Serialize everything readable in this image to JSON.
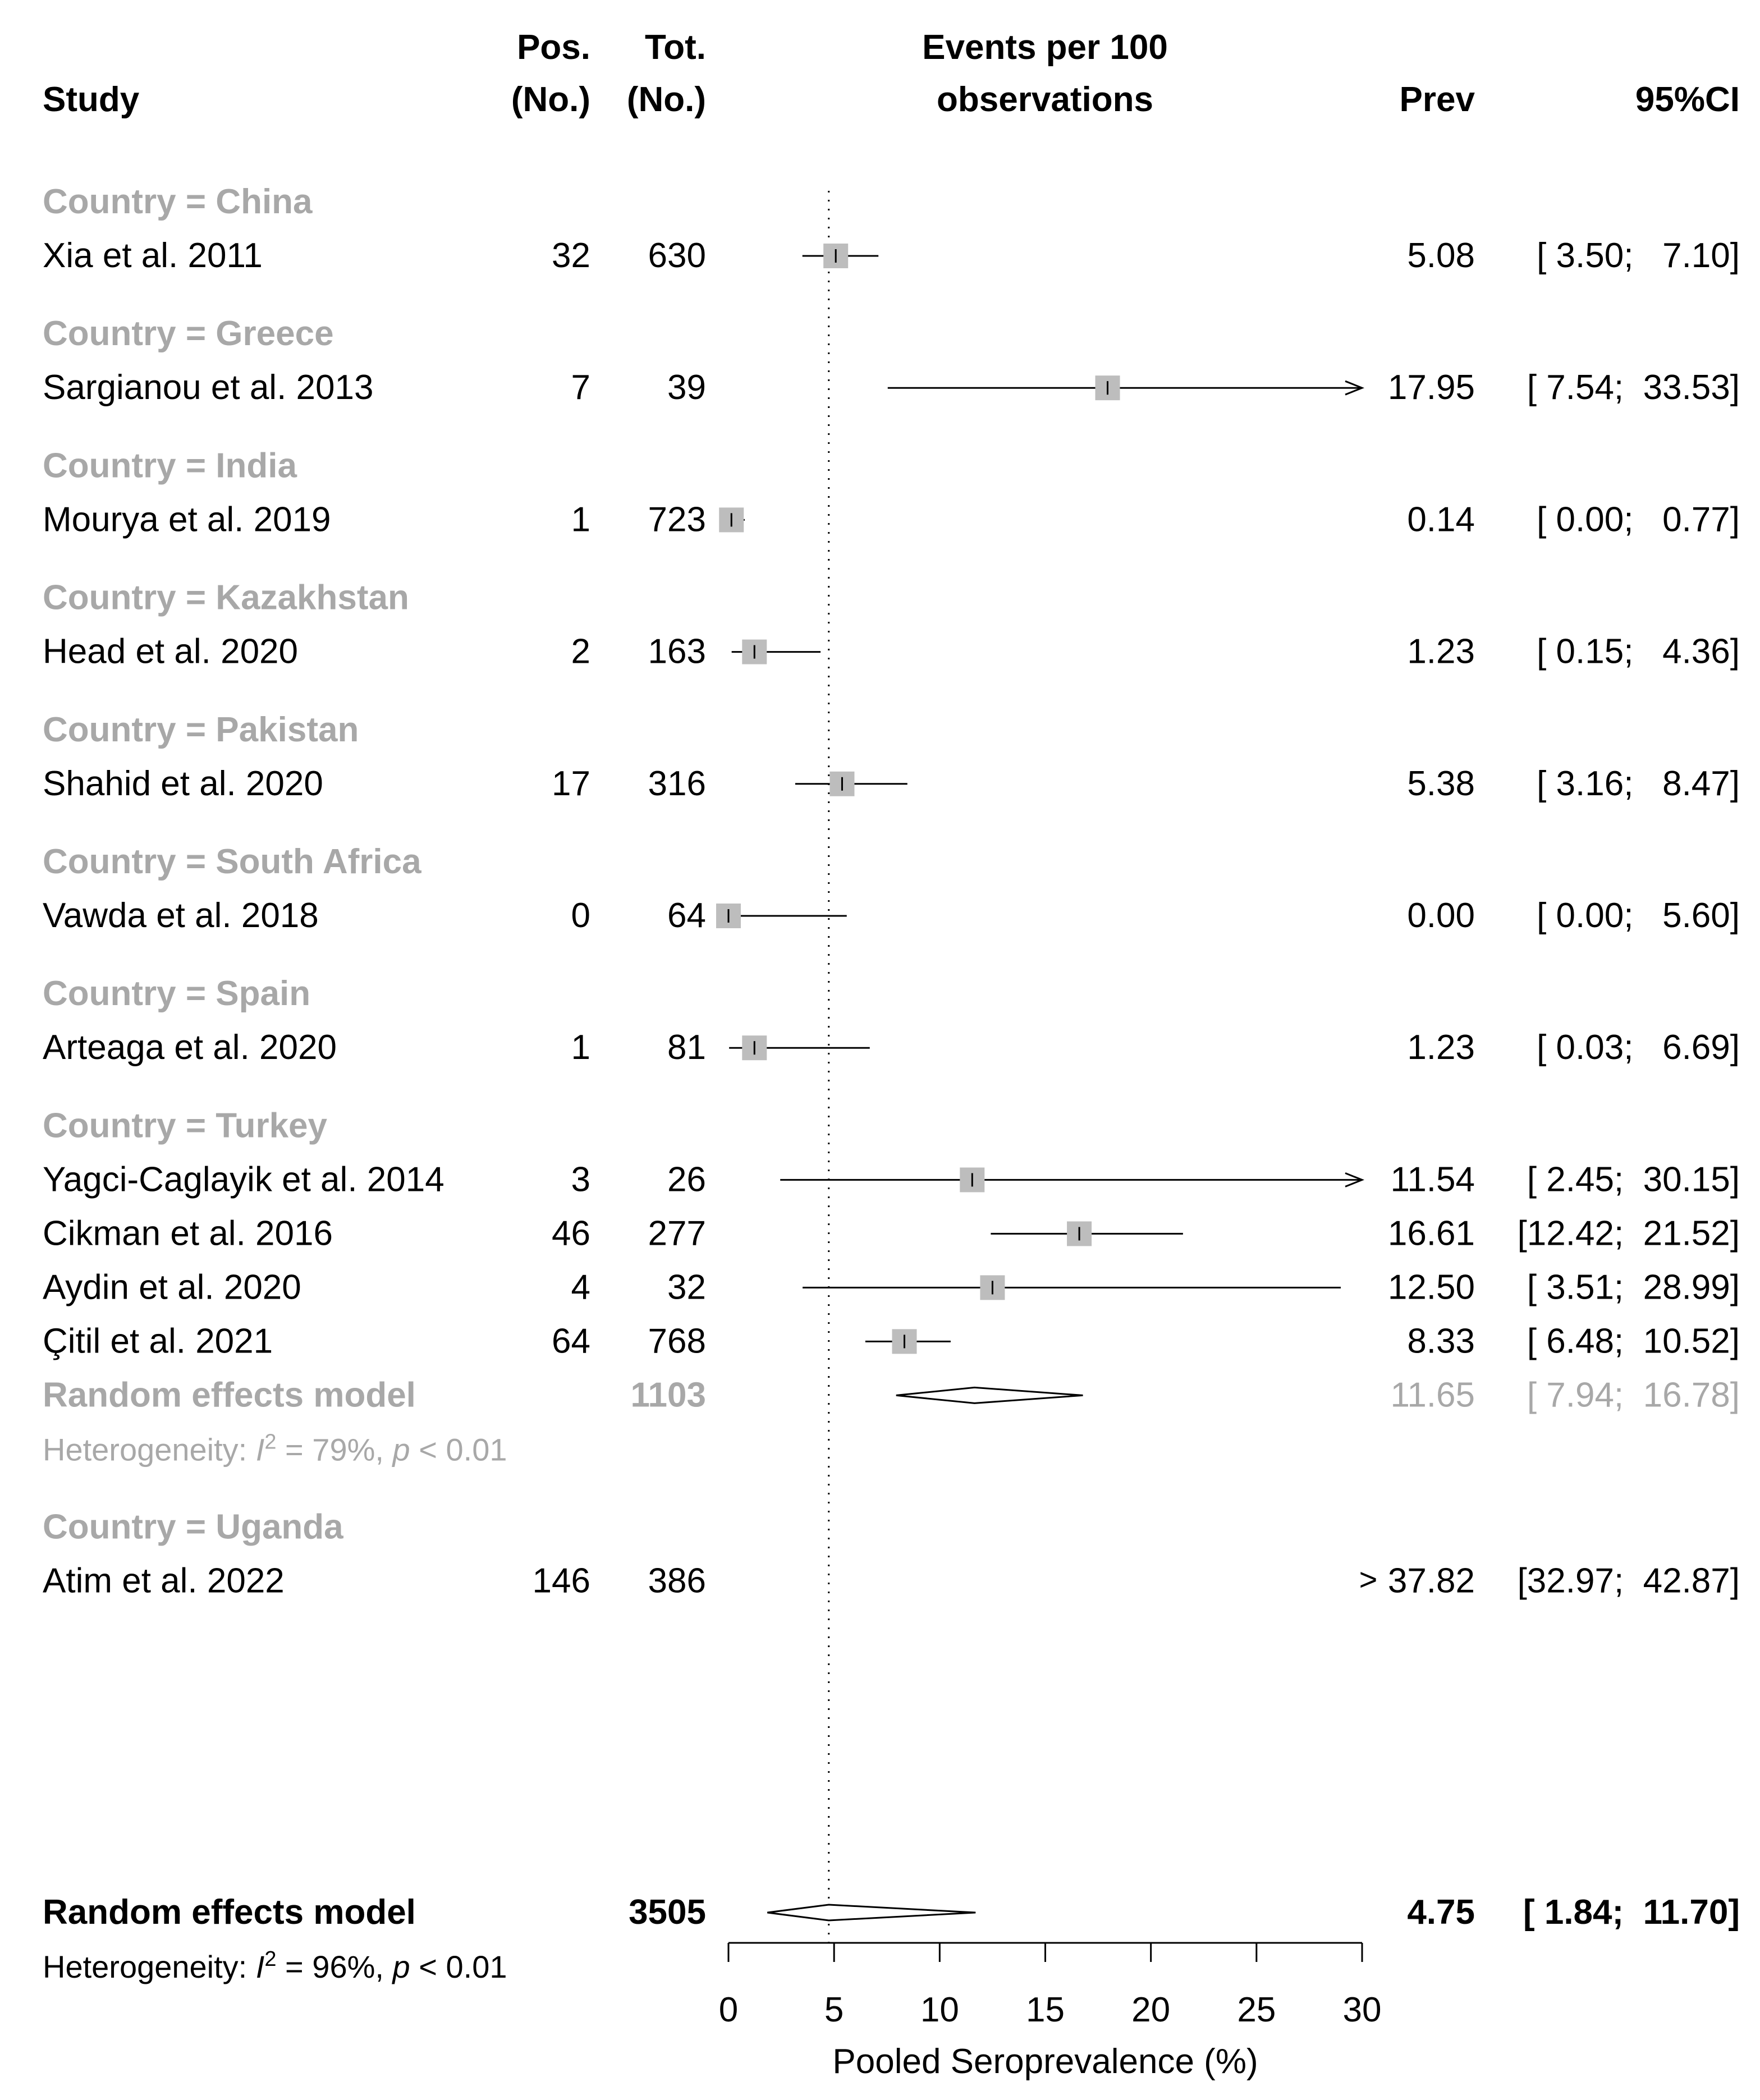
{
  "chart_data": {
    "type": "forest",
    "headers": {
      "study": "Study",
      "pos_line1": "Pos.",
      "pos_line2": "(No.)",
      "tot_line1": "Tot.",
      "tot_line2": "(No.)",
      "events_line1": "Events per 100",
      "events_line2": "observations",
      "prev": "Prev",
      "ci": "95%CI"
    },
    "groups": [
      {
        "label": "Country = China",
        "studies": [
          {
            "study": "Xia et al. 2011",
            "pos": "32",
            "tot": "630",
            "prev": 5.08,
            "lower": 3.5,
            "upper": 7.1,
            "prev_text": "5.08",
            "ci_text": "[ 3.50;   7.10]"
          }
        ]
      },
      {
        "label": "Country = Greece",
        "studies": [
          {
            "study": "Sargianou et al. 2013",
            "pos": "7",
            "tot": "39",
            "prev": 17.95,
            "lower": 7.54,
            "upper": 33.53,
            "prev_text": "17.95",
            "ci_text": "[ 7.54;  33.53]"
          }
        ]
      },
      {
        "label": "Country = India",
        "studies": [
          {
            "study": "Mourya et al. 2019",
            "pos": "1",
            "tot": "723",
            "prev": 0.14,
            "lower": 0.0,
            "upper": 0.77,
            "prev_text": "0.14",
            "ci_text": "[ 0.00;   0.77]"
          }
        ]
      },
      {
        "label": "Country = Kazakhstan",
        "studies": [
          {
            "study": "Head et al. 2020",
            "pos": "2",
            "tot": "163",
            "prev": 1.23,
            "lower": 0.15,
            "upper": 4.36,
            "prev_text": "1.23",
            "ci_text": "[ 0.15;   4.36]"
          }
        ]
      },
      {
        "label": "Country = Pakistan",
        "studies": [
          {
            "study": "Shahid et al. 2020",
            "pos": "17",
            "tot": "316",
            "prev": 5.38,
            "lower": 3.16,
            "upper": 8.47,
            "prev_text": "5.38",
            "ci_text": "[ 3.16;   8.47]"
          }
        ]
      },
      {
        "label": "Country = South Africa",
        "studies": [
          {
            "study": "Vawda et al. 2018",
            "pos": "0",
            "tot": "64",
            "prev": 0.0,
            "lower": 0.0,
            "upper": 5.6,
            "prev_text": "0.00",
            "ci_text": "[ 0.00;   5.60]"
          }
        ]
      },
      {
        "label": "Country = Spain",
        "studies": [
          {
            "study": "Arteaga et al. 2020",
            "pos": "1",
            "tot": "81",
            "prev": 1.23,
            "lower": 0.03,
            "upper": 6.69,
            "prev_text": "1.23",
            "ci_text": "[ 0.03;   6.69]"
          }
        ]
      },
      {
        "label": "Country = Turkey",
        "studies": [
          {
            "study": "Yagci-Caglayik et al. 2014",
            "pos": "3",
            "tot": "26",
            "prev": 11.54,
            "lower": 2.45,
            "upper": 30.15,
            "prev_text": "11.54",
            "ci_text": "[ 2.45;  30.15]"
          },
          {
            "study": "Cikman et al. 2016",
            "pos": "46",
            "tot": "277",
            "prev": 16.61,
            "lower": 12.42,
            "upper": 21.52,
            "prev_text": "16.61",
            "ci_text": "[12.42;  21.52]"
          },
          {
            "study": "Aydin et al. 2020",
            "pos": "4",
            "tot": "32",
            "prev": 12.5,
            "lower": 3.51,
            "upper": 28.99,
            "prev_text": "12.50",
            "ci_text": "[ 3.51;  28.99]"
          },
          {
            "study": "Çitil et al. 2021",
            "pos": "64",
            "tot": "768",
            "prev": 8.33,
            "lower": 6.48,
            "upper": 10.52,
            "prev_text": "8.33",
            "ci_text": "[ 6.48;  10.52]"
          }
        ],
        "subtotal": {
          "label": "Random effects model",
          "tot": "1103",
          "prev": 11.65,
          "lower": 7.94,
          "upper": 16.78,
          "prev_text": "11.65",
          "ci_text": "[ 7.94;  16.78]",
          "het_prefix": "Heterogeneity: ",
          "het_i2": "I",
          "het_sup": "2",
          "het_value": " = 79%, ",
          "het_p": "p",
          "het_tail": " < 0.01"
        }
      },
      {
        "label": "Country = Uganda",
        "studies": [
          {
            "study": "Atim et al. 2022",
            "pos": "146",
            "tot": "386",
            "prev": 37.82,
            "lower": 32.97,
            "upper": 42.87,
            "prev_text": "37.82",
            "ci_text": "[32.97;  42.87]",
            "off_scale_marker": ">"
          }
        ]
      }
    ],
    "overall": {
      "label": "Random effects model",
      "tot": "3505",
      "prev": 4.75,
      "lower": 1.84,
      "upper": 11.7,
      "prev_text": "4.75",
      "ci_text": "[ 1.84;  11.70]",
      "het_prefix": "Heterogeneity: ",
      "het_i2": "I",
      "het_sup": "2",
      "het_value": " = 96%, ",
      "het_p": "p",
      "het_tail": " < 0.01"
    },
    "xaxis": {
      "min": 0,
      "max": 30,
      "ticks": [
        0,
        5,
        10,
        15,
        20,
        25,
        30
      ],
      "label": "Pooled Seroprevalence (%)"
    },
    "reference_line": 4.75
  }
}
